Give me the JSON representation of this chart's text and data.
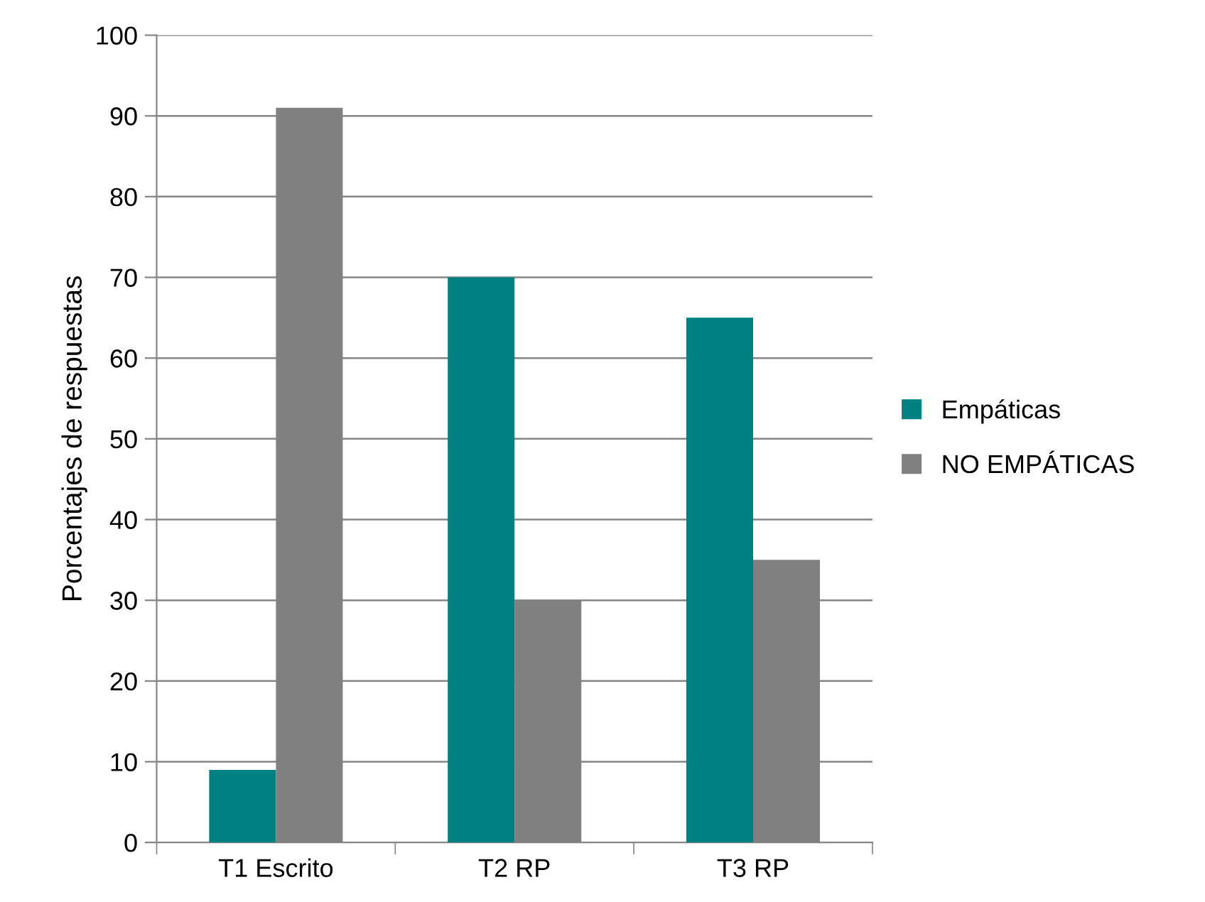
{
  "chart_data": {
    "type": "bar",
    "ylabel": "Porcentajes de respuestas",
    "categories": [
      "T1 Escrito",
      "T2 RP",
      "T3 RP"
    ],
    "series": [
      {
        "name": "Empáticas",
        "color": "#008080",
        "values": [
          9,
          70,
          65
        ]
      },
      {
        "name": "NO EMPÁTICAS",
        "color": "#808080",
        "values": [
          91,
          30,
          35
        ]
      }
    ],
    "ylim": [
      0,
      100
    ],
    "yticks": [
      0,
      10,
      20,
      30,
      40,
      50,
      60,
      70,
      80,
      90,
      100
    ],
    "grid": "y",
    "legend": "right"
  }
}
